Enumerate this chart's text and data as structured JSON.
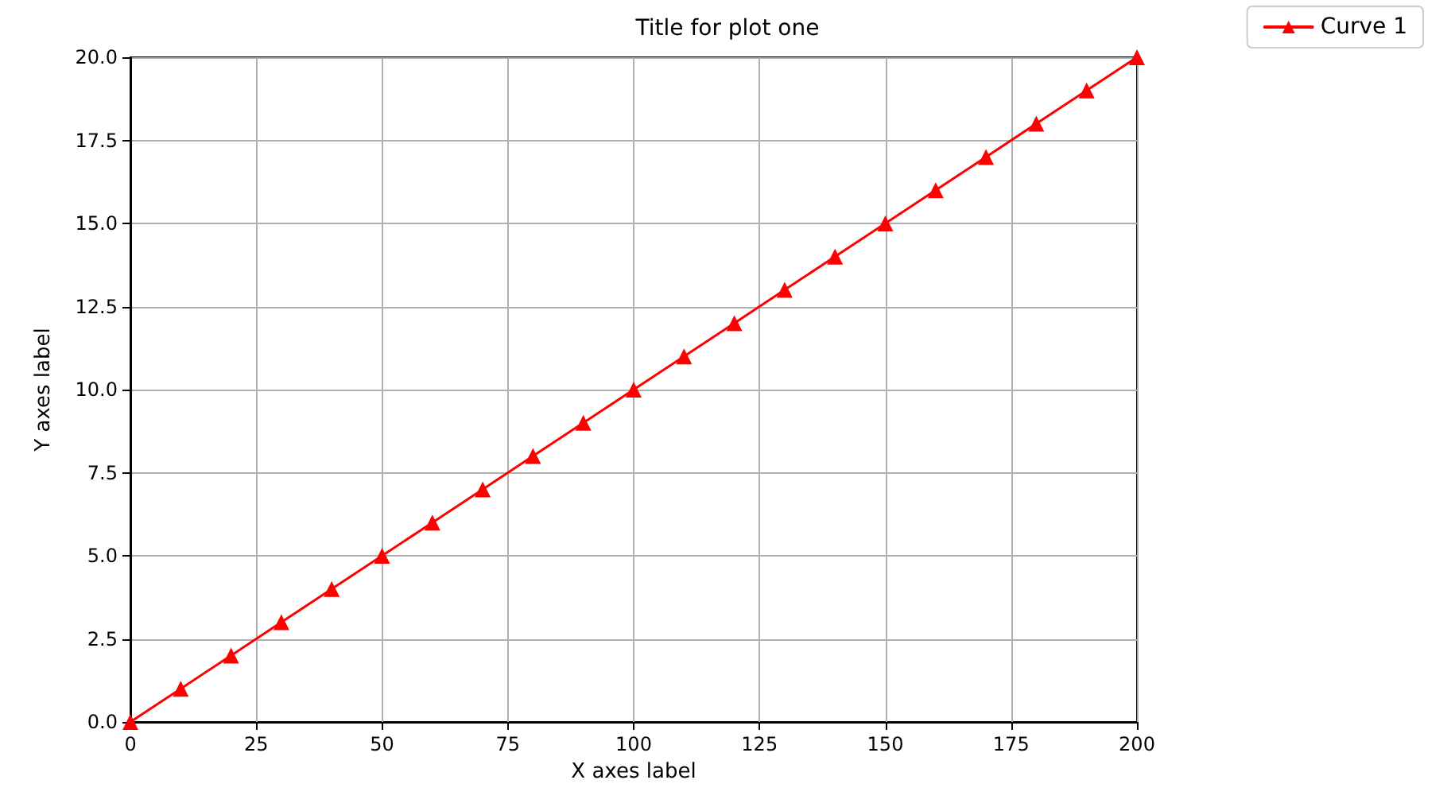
{
  "chart_data": {
    "type": "line",
    "title": "Title for plot one",
    "xlabel": "X axes label",
    "ylabel": "Y axes label",
    "x": [
      0,
      10,
      20,
      30,
      40,
      50,
      60,
      70,
      80,
      90,
      100,
      110,
      120,
      130,
      140,
      150,
      160,
      170,
      180,
      190,
      200
    ],
    "series": [
      {
        "name": "Curve 1",
        "color": "#ff0000",
        "values": [
          0,
          1,
          2,
          3,
          4,
          5,
          6,
          7,
          8,
          9,
          10,
          11,
          12,
          13,
          14,
          15,
          16,
          17,
          18,
          19,
          20
        ]
      }
    ],
    "xlim": [
      0,
      200
    ],
    "xticks": [
      0,
      25,
      50,
      75,
      100,
      125,
      150,
      175,
      200
    ],
    "ylim": [
      0,
      20
    ],
    "yticks": [
      {
        "value": 0,
        "label": "0.0"
      },
      {
        "value": 2.5,
        "label": "2.5"
      },
      {
        "value": 5,
        "label": "5.0"
      },
      {
        "value": 7.5,
        "label": "7.5"
      },
      {
        "value": 10,
        "label": "10.0"
      },
      {
        "value": 12.5,
        "label": "12.5"
      },
      {
        "value": 15,
        "label": "15.0"
      },
      {
        "value": 17.5,
        "label": "17.5"
      },
      {
        "value": 20,
        "label": "20.0"
      }
    ],
    "grid": true,
    "legend": "top right",
    "marker": "triangle",
    "line_style": "solid"
  }
}
